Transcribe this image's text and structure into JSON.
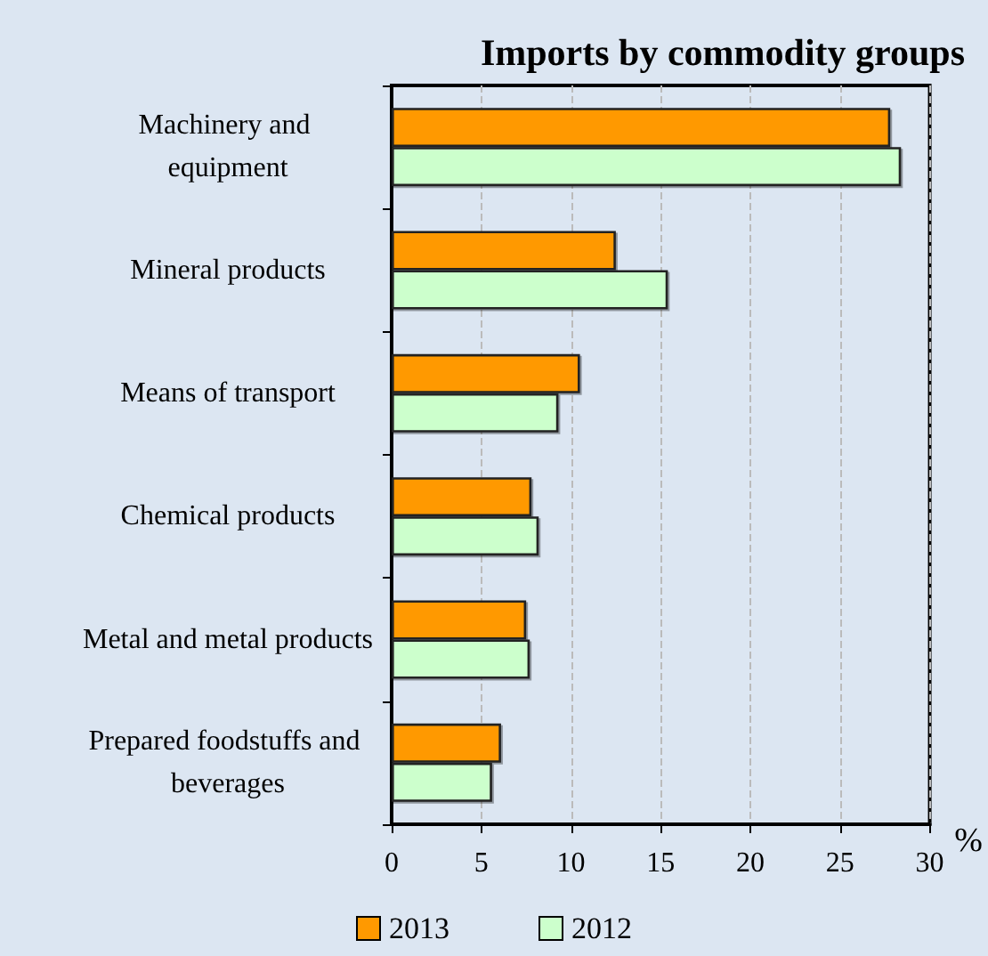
{
  "chart_data": {
    "type": "bar",
    "orientation": "horizontal",
    "title": "Imports by commodity groups",
    "xlabel": "%",
    "categories": [
      "Machinery and equipment",
      "Mineral products",
      "Means of transport",
      "Chemical products",
      "Metal and metal products",
      "Prepared foodstuffs and beverages"
    ],
    "series": [
      {
        "name": "2013",
        "color": "#ff9900",
        "values": [
          27.8,
          12.5,
          10.5,
          7.8,
          7.5,
          6.1
        ]
      },
      {
        "name": "2012",
        "color": "#ccffcc",
        "values": [
          28.4,
          15.4,
          9.3,
          8.2,
          7.7,
          5.6
        ]
      }
    ],
    "xlim": [
      0,
      30
    ],
    "xticks": [
      0,
      5,
      10,
      15,
      20,
      25,
      30
    ],
    "grid": "x",
    "legend": "bottom"
  }
}
